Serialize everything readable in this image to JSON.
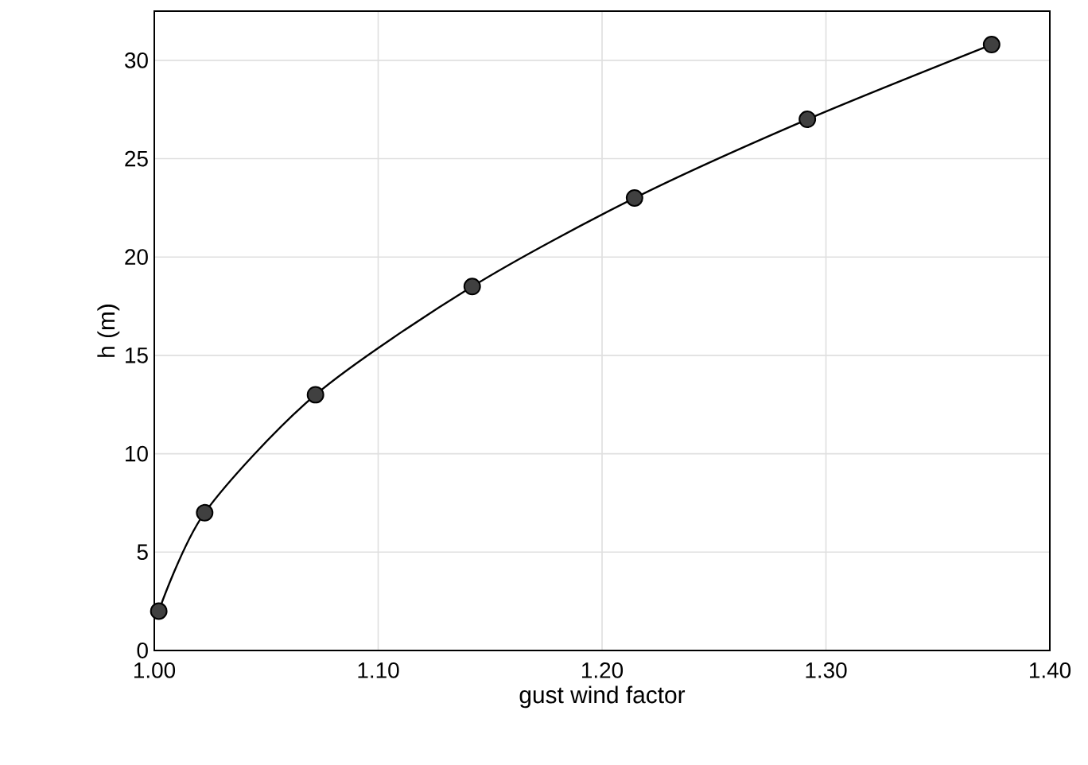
{
  "chart_data": {
    "type": "line",
    "xlabel": "gust wind factor",
    "ylabel": "h (m)",
    "x": [
      1.002,
      1.0225,
      1.072,
      1.142,
      1.2145,
      1.2917,
      1.374
    ],
    "series": [
      {
        "color": "#000000",
        "values": [
          2.0,
          7.0,
          13.0,
          18.5,
          23.0,
          27.0,
          30.8
        ]
      }
    ],
    "xlim": [
      1.0,
      1.4
    ],
    "ylim": [
      0,
      32.5
    ],
    "xticks": [
      {
        "value": 1.0,
        "label": "1.00"
      },
      {
        "value": 1.1,
        "label": "1.10"
      },
      {
        "value": 1.2,
        "label": "1.20"
      },
      {
        "value": 1.3,
        "label": "1.30"
      },
      {
        "value": 1.4,
        "label": "1.40"
      }
    ],
    "yticks": [
      0,
      5,
      10,
      15,
      20,
      25,
      30
    ],
    "grid": true,
    "marker": "circle",
    "line_style": "solid"
  }
}
